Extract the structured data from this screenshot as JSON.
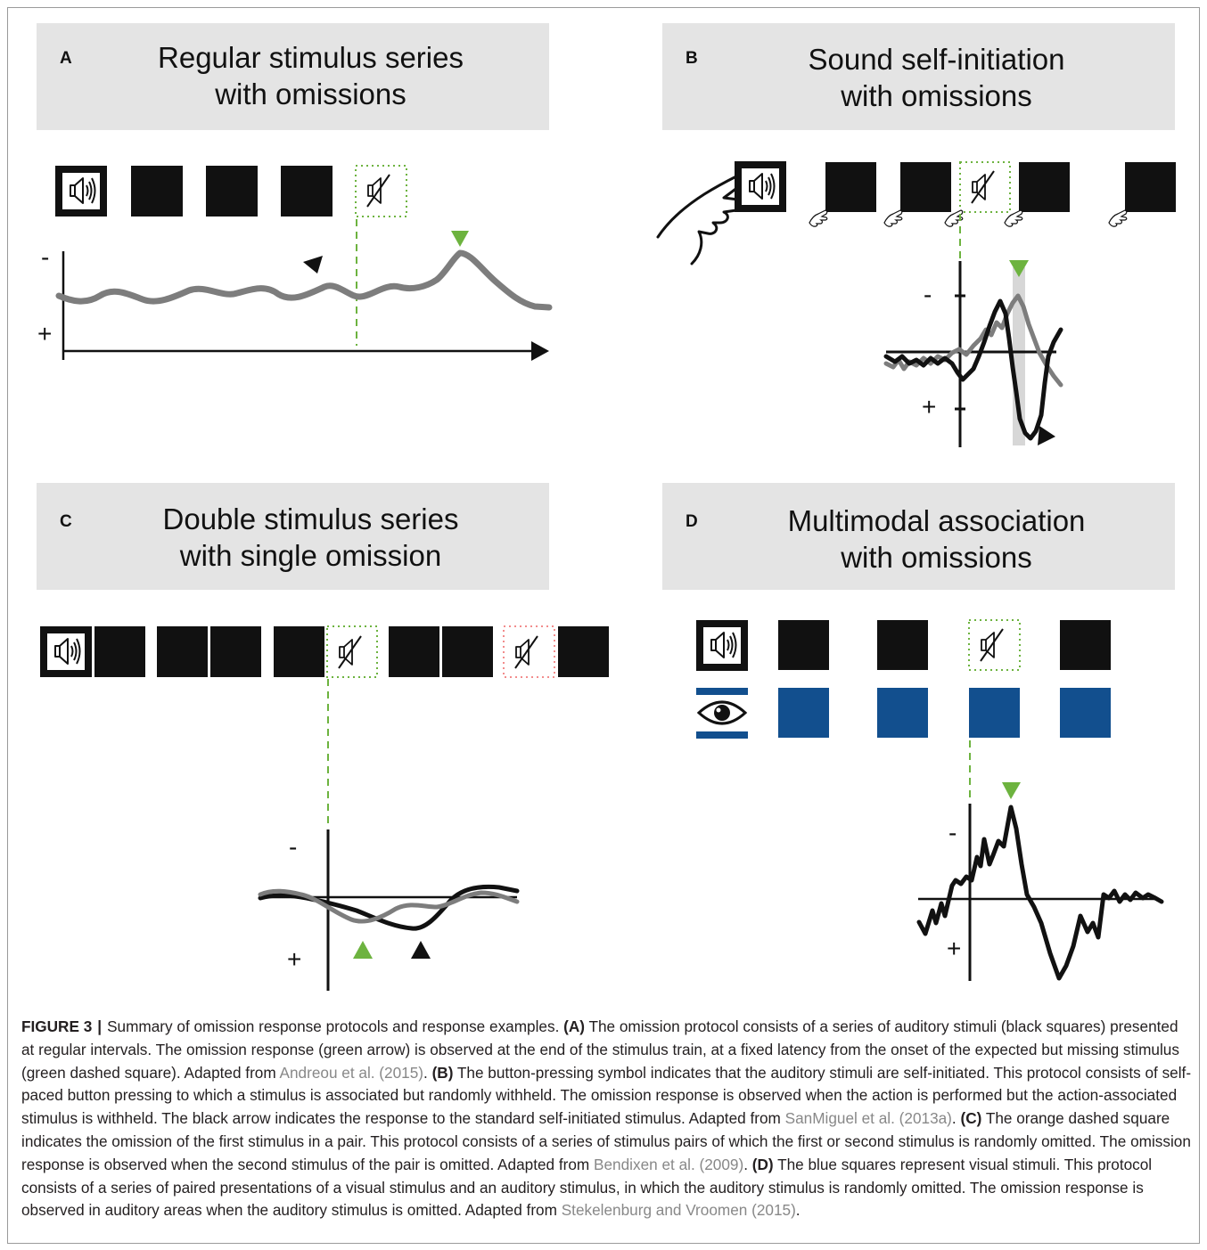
{
  "panels": {
    "a": {
      "letter": "A",
      "title_line1": "Regular stimulus series",
      "title_line2": "with omissions",
      "axis_minus": "-",
      "axis_plus": "+"
    },
    "b": {
      "letter": "B",
      "title_line1": "Sound self-initiation",
      "title_line2": "with omissions",
      "axis_minus": "-",
      "axis_plus": "+"
    },
    "c": {
      "letter": "C",
      "title_line1": "Double stimulus series",
      "title_line2": "with single omission",
      "axis_minus": "-",
      "axis_plus": "+"
    },
    "d": {
      "letter": "D",
      "title_line1": "Multimodal association",
      "title_line2": "with omissions",
      "axis_minus": "-",
      "axis_plus": "+"
    }
  },
  "colors": {
    "green_marker": "#6db33f",
    "grey_trace": "#7d7d7d",
    "black_trace": "#111111",
    "blue_visual": "#124f8e",
    "header_bg": "#e4e4e4",
    "omission_green": "#6db33f",
    "omission_orange": "#f28c8c"
  },
  "icons": [
    "speaker-icon",
    "muted-speaker-icon",
    "eye-icon",
    "pointing-hand-icon",
    "button-press-icon"
  ],
  "caption": {
    "label": "FIGURE 3",
    "separator": "|",
    "intro": "Summary of omission response protocols and response examples.",
    "a_label": "(A)",
    "a_text": "The omission protocol consists of a series of auditory stimuli (black squares) presented at regular intervals. The omission response (green arrow) is observed at the end of the stimulus train, at a fixed latency from the onset of the expected but missing stimulus (green dashed square). Adapted from",
    "a_ref": "Andreou et al. (2015)",
    "b_label": "(B)",
    "b_text": "The button-pressing symbol indicates that the auditory stimuli are self-initiated. This protocol consists of self-paced button pressing to which a stimulus is associated but randomly withheld. The omission response is observed when the action is performed but the action-associated stimulus is withheld. The black arrow indicates the response to the standard self-initiated stimulus. Adapted from",
    "b_ref": "SanMiguel et al. (2013a)",
    "c_label": "(C)",
    "c_text": "The orange dashed square indicates the omission of the first stimulus in a pair. This protocol consists of a series of stimulus pairs of which the first or second stimulus is randomly omitted. The omission response is observed when the second stimulus of the pair is omitted. Adapted from",
    "c_ref": "Bendixen et al. (2009)",
    "d_label": "(D)",
    "d_text": "The blue squares represent visual stimuli. This protocol consists of a series of paired presentations of a visual stimulus and an auditory stimulus, in which the auditory stimulus is randomly omitted. The omission response is observed in auditory areas when the auditory stimulus is omitted. Adapted from",
    "d_ref": "Stekelenburg and Vroomen (2015)"
  }
}
